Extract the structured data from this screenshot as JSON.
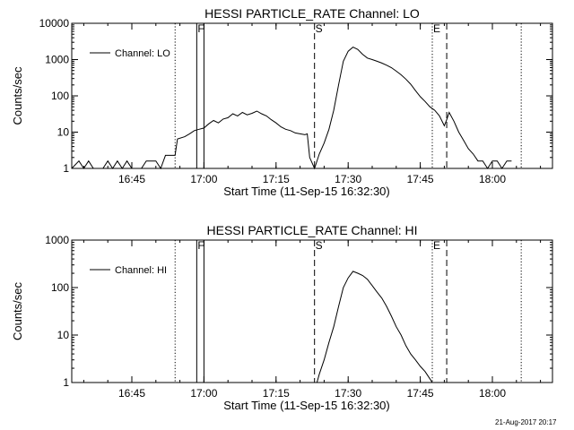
{
  "footer": {
    "date": "21-Aug-2017 20:17"
  },
  "chart_data": [
    {
      "type": "line",
      "title": "HESSI PARTICLE_RATE Channel: LO",
      "xlabel": "Start Time (11-Sep-15 16:32:30)",
      "ylabel": "Counts/sec",
      "yscale": "log",
      "ylim": [
        1,
        10000
      ],
      "yticks": [
        1,
        10,
        100,
        1000,
        10000
      ],
      "yticklabels": [
        "1",
        "10",
        "100",
        "1000",
        "10000"
      ],
      "xlim": [
        "16:32:30",
        "18:12:30"
      ],
      "xticks": [
        "16:45",
        "17:00",
        "17:15",
        "17:30",
        "17:45",
        "18:00"
      ],
      "legend": {
        "position": "top-left",
        "entries": [
          "Channel: LO"
        ]
      },
      "grid": false,
      "markers": [
        {
          "label": "F",
          "time": "16:58:30",
          "style": "solid"
        },
        {
          "label": "",
          "time": "17:00:00",
          "style": "solid"
        },
        {
          "label": "S",
          "time": "17:23:00",
          "style": "dashed"
        },
        {
          "label": "E",
          "time": "17:47:30",
          "style": "dotted"
        },
        {
          "label": "",
          "time": "17:50:30",
          "style": "dashed"
        },
        {
          "label": "",
          "time": "16:54:00",
          "style": "dotted"
        },
        {
          "label": "",
          "time": "18:06:00",
          "style": "dotted"
        }
      ],
      "series": [
        {
          "name": "Channel: LO",
          "x": [
            "16:32:30",
            "16:34:00",
            "16:35:00",
            "16:36:00",
            "16:37:00",
            "16:38:00",
            "16:39:00",
            "16:40:00",
            "16:41:00",
            "16:42:00",
            "16:43:00",
            "16:44:00",
            "16:45:00",
            "16:46:00",
            "16:47:00",
            "16:48:00",
            "16:49:00",
            "16:50:00",
            "16:51:00",
            "16:52:00",
            "16:53:00",
            "16:54:00",
            "16:54:30",
            "16:56:00",
            "16:57:00",
            "16:58:00",
            "16:59:00",
            "17:00:00",
            "17:01:00",
            "17:02:00",
            "17:03:00",
            "17:04:00",
            "17:05:00",
            "17:06:00",
            "17:07:00",
            "17:08:00",
            "17:09:00",
            "17:10:00",
            "17:11:00",
            "17:12:00",
            "17:13:00",
            "17:14:00",
            "17:15:00",
            "17:16:00",
            "17:17:00",
            "17:18:00",
            "17:19:00",
            "17:20:00",
            "17:21:00",
            "17:21:30",
            "17:22:00",
            "17:23:00",
            "17:24:00",
            "17:25:00",
            "17:26:00",
            "17:27:00",
            "17:28:00",
            "17:29:00",
            "17:30:00",
            "17:31:00",
            "17:32:00",
            "17:33:00",
            "17:34:00",
            "17:35:00",
            "17:36:00",
            "17:37:00",
            "17:38:00",
            "17:39:00",
            "17:40:00",
            "17:41:00",
            "17:42:00",
            "17:43:00",
            "17:44:00",
            "17:45:00",
            "17:46:00",
            "17:47:00",
            "17:48:00",
            "17:49:00",
            "17:50:00",
            "17:50:30",
            "17:51:00",
            "17:52:00",
            "17:53:00",
            "17:54:00",
            "17:55:00",
            "17:56:00",
            "17:57:00",
            "17:58:00",
            "17:59:00",
            "18:00:00",
            "18:01:00",
            "18:02:00",
            "18:03:00",
            "18:04:00"
          ],
          "values": [
            1,
            1.6,
            1,
            1.6,
            1,
            1,
            1,
            1.6,
            1,
            1.6,
            1,
            1.6,
            1,
            1,
            1,
            1.6,
            1.6,
            1.6,
            1,
            2.3,
            2.3,
            2.3,
            6.5,
            7.5,
            9,
            11,
            12,
            13,
            17,
            21,
            18,
            23,
            25,
            32,
            28,
            35,
            30,
            33,
            38,
            32,
            28,
            22,
            18,
            14,
            12,
            11,
            9.5,
            9,
            8.5,
            9,
            2,
            1,
            2.5,
            5,
            12,
            40,
            200,
            900,
            1700,
            2200,
            1900,
            1400,
            1100,
            1000,
            900,
            800,
            700,
            600,
            480,
            380,
            290,
            210,
            140,
            95,
            70,
            50,
            40,
            28,
            15,
            22,
            35,
            20,
            10,
            6,
            3.5,
            2.5,
            1.6,
            1.6,
            1,
            1.6,
            1.6,
            1,
            1.6,
            1.6
          ]
        }
      ]
    },
    {
      "type": "line",
      "title": "HESSI PARTICLE_RATE Channel: HI",
      "xlabel": "Start Time (11-Sep-15 16:32:30)",
      "ylabel": "Counts/sec",
      "yscale": "log",
      "ylim": [
        1,
        1000
      ],
      "yticks": [
        1,
        10,
        100,
        1000
      ],
      "yticklabels": [
        "1",
        "10",
        "100",
        "1000"
      ],
      "xlim": [
        "16:32:30",
        "18:12:30"
      ],
      "xticks": [
        "16:45",
        "17:00",
        "17:15",
        "17:30",
        "17:45",
        "18:00"
      ],
      "legend": {
        "position": "top-left",
        "entries": [
          "Channel: HI"
        ]
      },
      "grid": false,
      "markers": [
        {
          "label": "F",
          "time": "16:58:30",
          "style": "solid"
        },
        {
          "label": "",
          "time": "17:00:00",
          "style": "solid"
        },
        {
          "label": "S",
          "time": "17:23:00",
          "style": "dashed"
        },
        {
          "label": "E",
          "time": "17:47:30",
          "style": "dotted"
        },
        {
          "label": "",
          "time": "17:50:30",
          "style": "dashed"
        },
        {
          "label": "",
          "time": "16:54:00",
          "style": "dotted"
        },
        {
          "label": "",
          "time": "18:06:00",
          "style": "dotted"
        }
      ],
      "series": [
        {
          "name": "Channel: HI",
          "x": [
            "17:23:30",
            "17:24:00",
            "17:25:00",
            "17:26:00",
            "17:27:00",
            "17:28:00",
            "17:29:00",
            "17:30:00",
            "17:31:00",
            "17:32:00",
            "17:33:00",
            "17:34:00",
            "17:35:00",
            "17:36:00",
            "17:37:00",
            "17:38:00",
            "17:39:00",
            "17:40:00",
            "17:41:00",
            "17:42:00",
            "17:43:00",
            "17:44:00",
            "17:45:00",
            "17:46:00",
            "17:47:00",
            "17:47:30"
          ],
          "values": [
            1,
            1.5,
            3,
            7,
            15,
            40,
            100,
            160,
            220,
            200,
            180,
            150,
            110,
            80,
            60,
            40,
            25,
            15,
            10,
            6,
            4,
            3,
            2.2,
            1.7,
            1.2,
            1
          ]
        }
      ]
    }
  ]
}
